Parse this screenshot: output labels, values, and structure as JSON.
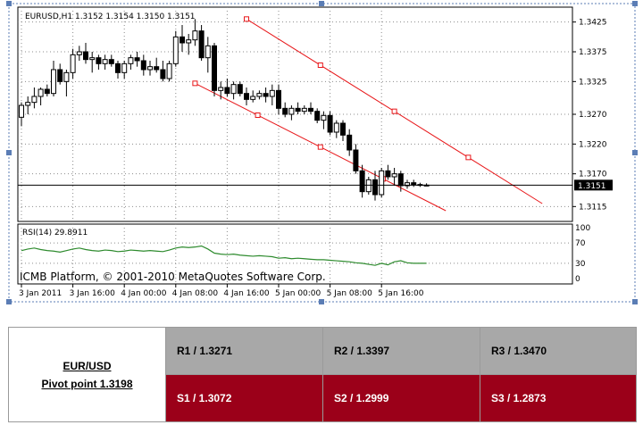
{
  "chart_data": [
    {
      "type": "candlestick",
      "title": "EURUSD,H1  1.3152 1.3154 1.3150 1.3151",
      "ylim": [
        1.309,
        1.345
      ],
      "y_ticks": [
        "1.3425",
        "1.3375",
        "1.3325",
        "1.3270",
        "1.3220",
        "1.3170",
        "1.3115"
      ],
      "y_tick_values": [
        1.3425,
        1.3375,
        1.3325,
        1.327,
        1.322,
        1.317,
        1.3115
      ],
      "x_labels": [
        "3 Jan 2011",
        "3 Jan 16:00",
        "4 Jan 00:00",
        "4 Jan 08:00",
        "4 Jan 16:00",
        "5 Jan 00:00",
        "5 Jan 08:00",
        "5 Jan 16:00"
      ],
      "x_label_bars": [
        0,
        8,
        16,
        24,
        32,
        40,
        48,
        56
      ],
      "current_price": "1.3151",
      "current_price_value": 1.3151,
      "watermark": "ICMB Platform, © 2001-2010 MetaQuotes Software Corp.",
      "candles": [
        {
          "o": 1.3265,
          "h": 1.329,
          "l": 1.325,
          "c": 1.3285
        },
        {
          "o": 1.3285,
          "h": 1.33,
          "l": 1.327,
          "c": 1.329
        },
        {
          "o": 1.329,
          "h": 1.3315,
          "l": 1.328,
          "c": 1.33
        },
        {
          "o": 1.33,
          "h": 1.3315,
          "l": 1.3285,
          "c": 1.3312
        },
        {
          "o": 1.3312,
          "h": 1.332,
          "l": 1.33,
          "c": 1.3305
        },
        {
          "o": 1.3305,
          "h": 1.336,
          "l": 1.33,
          "c": 1.3345
        },
        {
          "o": 1.3345,
          "h": 1.3355,
          "l": 1.332,
          "c": 1.3325
        },
        {
          "o": 1.3325,
          "h": 1.3345,
          "l": 1.33,
          "c": 1.334
        },
        {
          "o": 1.334,
          "h": 1.338,
          "l": 1.333,
          "c": 1.337
        },
        {
          "o": 1.337,
          "h": 1.3385,
          "l": 1.336,
          "c": 1.3375
        },
        {
          "o": 1.3375,
          "h": 1.339,
          "l": 1.3355,
          "c": 1.3362
        },
        {
          "o": 1.3362,
          "h": 1.3375,
          "l": 1.334,
          "c": 1.3365
        },
        {
          "o": 1.3365,
          "h": 1.337,
          "l": 1.3345,
          "c": 1.3355
        },
        {
          "o": 1.3355,
          "h": 1.337,
          "l": 1.3345,
          "c": 1.3362
        },
        {
          "o": 1.3362,
          "h": 1.337,
          "l": 1.335,
          "c": 1.3355
        },
        {
          "o": 1.3355,
          "h": 1.336,
          "l": 1.333,
          "c": 1.334
        },
        {
          "o": 1.334,
          "h": 1.336,
          "l": 1.333,
          "c": 1.3355
        },
        {
          "o": 1.3355,
          "h": 1.337,
          "l": 1.3345,
          "c": 1.3365
        },
        {
          "o": 1.3365,
          "h": 1.3375,
          "l": 1.335,
          "c": 1.336
        },
        {
          "o": 1.336,
          "h": 1.337,
          "l": 1.3335,
          "c": 1.3345
        },
        {
          "o": 1.3345,
          "h": 1.336,
          "l": 1.3335,
          "c": 1.335
        },
        {
          "o": 1.335,
          "h": 1.3365,
          "l": 1.334,
          "c": 1.3345
        },
        {
          "o": 1.3345,
          "h": 1.336,
          "l": 1.3325,
          "c": 1.333
        },
        {
          "o": 1.333,
          "h": 1.336,
          "l": 1.3325,
          "c": 1.3355
        },
        {
          "o": 1.3355,
          "h": 1.341,
          "l": 1.335,
          "c": 1.34
        },
        {
          "o": 1.34,
          "h": 1.342,
          "l": 1.3375,
          "c": 1.339
        },
        {
          "o": 1.339,
          "h": 1.3405,
          "l": 1.337,
          "c": 1.3395
        },
        {
          "o": 1.3395,
          "h": 1.343,
          "l": 1.3385,
          "c": 1.341
        },
        {
          "o": 1.341,
          "h": 1.342,
          "l": 1.336,
          "c": 1.3365
        },
        {
          "o": 1.3365,
          "h": 1.34,
          "l": 1.334,
          "c": 1.3385
        },
        {
          "o": 1.3385,
          "h": 1.339,
          "l": 1.33,
          "c": 1.331
        },
        {
          "o": 1.331,
          "h": 1.3325,
          "l": 1.3295,
          "c": 1.3315
        },
        {
          "o": 1.3315,
          "h": 1.333,
          "l": 1.33,
          "c": 1.3305
        },
        {
          "o": 1.3305,
          "h": 1.3325,
          "l": 1.3295,
          "c": 1.332
        },
        {
          "o": 1.332,
          "h": 1.3325,
          "l": 1.33,
          "c": 1.3305
        },
        {
          "o": 1.3305,
          "h": 1.3315,
          "l": 1.3285,
          "c": 1.3295
        },
        {
          "o": 1.3295,
          "h": 1.331,
          "l": 1.329,
          "c": 1.33
        },
        {
          "o": 1.33,
          "h": 1.331,
          "l": 1.3295,
          "c": 1.3305
        },
        {
          "o": 1.3305,
          "h": 1.3315,
          "l": 1.329,
          "c": 1.33
        },
        {
          "o": 1.33,
          "h": 1.332,
          "l": 1.3285,
          "c": 1.331
        },
        {
          "o": 1.331,
          "h": 1.332,
          "l": 1.327,
          "c": 1.328
        },
        {
          "o": 1.328,
          "h": 1.329,
          "l": 1.3265,
          "c": 1.327
        },
        {
          "o": 1.327,
          "h": 1.3285,
          "l": 1.326,
          "c": 1.328
        },
        {
          "o": 1.328,
          "h": 1.329,
          "l": 1.327,
          "c": 1.3275
        },
        {
          "o": 1.3275,
          "h": 1.3285,
          "l": 1.327,
          "c": 1.328
        },
        {
          "o": 1.328,
          "h": 1.329,
          "l": 1.327,
          "c": 1.3275
        },
        {
          "o": 1.3275,
          "h": 1.328,
          "l": 1.3255,
          "c": 1.326
        },
        {
          "o": 1.326,
          "h": 1.3275,
          "l": 1.3245,
          "c": 1.3268
        },
        {
          "o": 1.3268,
          "h": 1.3275,
          "l": 1.3235,
          "c": 1.324
        },
        {
          "o": 1.324,
          "h": 1.326,
          "l": 1.323,
          "c": 1.3255
        },
        {
          "o": 1.3255,
          "h": 1.326,
          "l": 1.3225,
          "c": 1.3235
        },
        {
          "o": 1.3235,
          "h": 1.3245,
          "l": 1.32,
          "c": 1.321
        },
        {
          "o": 1.321,
          "h": 1.322,
          "l": 1.317,
          "c": 1.3175
        },
        {
          "o": 1.3175,
          "h": 1.3185,
          "l": 1.313,
          "c": 1.314
        },
        {
          "o": 1.314,
          "h": 1.3165,
          "l": 1.3135,
          "c": 1.316
        },
        {
          "o": 1.316,
          "h": 1.3175,
          "l": 1.3125,
          "c": 1.3135
        },
        {
          "o": 1.3135,
          "h": 1.318,
          "l": 1.313,
          "c": 1.3175
        },
        {
          "o": 1.3175,
          "h": 1.3185,
          "l": 1.316,
          "c": 1.3165
        },
        {
          "o": 1.3165,
          "h": 1.318,
          "l": 1.315,
          "c": 1.317
        },
        {
          "o": 1.317,
          "h": 1.3175,
          "l": 1.314,
          "c": 1.315
        },
        {
          "o": 1.315,
          "h": 1.316,
          "l": 1.3145,
          "c": 1.3155
        },
        {
          "o": 1.3155,
          "h": 1.316,
          "l": 1.3148,
          "c": 1.3152
        },
        {
          "o": 1.3152,
          "h": 1.3155,
          "l": 1.3148,
          "c": 1.3151
        },
        {
          "o": 1.3151,
          "h": 1.3154,
          "l": 1.315,
          "c": 1.3151
        }
      ],
      "channel_lines": [
        {
          "bar_start": 35,
          "price_start": 1.343,
          "bar_end": 81,
          "price_end": 1.312
        },
        {
          "bar_start": 27,
          "price_start": 1.3322,
          "bar_end": 66,
          "price_end": 1.3108
        }
      ]
    },
    {
      "type": "line",
      "title": "RSI(14) 29.8911",
      "ylim": [
        0,
        100
      ],
      "y_ticks": [
        "100",
        "70",
        "30",
        "0"
      ],
      "y_tick_values": [
        100,
        70,
        30,
        0
      ],
      "series": [
        {
          "name": "RSI(14)",
          "color": "#2e8b2e",
          "values": [
            55,
            58,
            60,
            57,
            55,
            54,
            52,
            55,
            58,
            60,
            57,
            55,
            54,
            56,
            55,
            53,
            54,
            56,
            55,
            54,
            55,
            54,
            53,
            56,
            60,
            62,
            61,
            62,
            64,
            58,
            50,
            48,
            47,
            48,
            46,
            45,
            44,
            45,
            44,
            43,
            40,
            41,
            39,
            40,
            39,
            38,
            37,
            37,
            36,
            35,
            34,
            33,
            31,
            30,
            28,
            26,
            30,
            27,
            33,
            35,
            31,
            30,
            30,
            30
          ]
        }
      ]
    }
  ],
  "pivot_table": {
    "pair": "EUR/USD",
    "pivot": "Pivot point 1.3198",
    "r1": "R1 / 1.3271",
    "r2": "R2 / 1.3397",
    "r3": "R3 / 1.3470",
    "s1": "S1 / 1.3072",
    "s2": "S2 / 1.2999",
    "s3": "S3 / 1.2873"
  },
  "colors": {
    "channel": "#e8171a",
    "rsi": "#2e8b2e",
    "price_label_bg": "#000000",
    "resistance_bg": "#a8a8a8",
    "support_bg": "#9b0019"
  }
}
